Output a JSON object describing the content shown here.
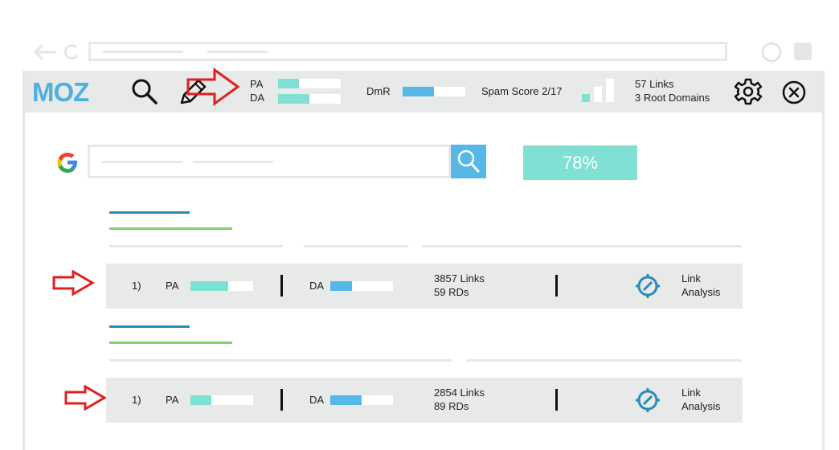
{
  "colors": {
    "moz_blue": "#4fb0de",
    "teal": "#7fe0d3",
    "blue": "#56b8e6",
    "green": "#7fcf6a",
    "dark_blue_line": "#2b8ab8",
    "arrow_red": "#e02020",
    "toolbar_bg": "#e8e9e9"
  },
  "browser": {
    "back_icon": "arrow-left-icon",
    "refresh_icon": "refresh-icon"
  },
  "toolbar": {
    "logo": "MOZ",
    "pa_label": "PA",
    "da_label": "DA",
    "pa_fill": 0.33,
    "da_fill": 0.5,
    "dmr_label": "DmR",
    "dmr_fill": 0.5,
    "spam_score": "Spam Score 2/17",
    "links": "57 Links",
    "root_domains": "3 Root Domains"
  },
  "search": {
    "percent": "78%"
  },
  "results": [
    {
      "rank": "1)",
      "pa_label": "PA",
      "pa_fill": 0.6,
      "da_label": "DA",
      "da_fill": 0.35,
      "links": "3857 Links",
      "rds": "59 RDs",
      "action": "Link\nAnalysis",
      "action_line1": "Link",
      "action_line2": "Analysis"
    },
    {
      "rank": "1)",
      "pa_label": "PA",
      "pa_fill": 0.33,
      "da_label": "DA",
      "da_fill": 0.5,
      "links": "2854 Links",
      "rds": "89 RDs",
      "action_line1": "Link",
      "action_line2": "Analysis"
    }
  ]
}
